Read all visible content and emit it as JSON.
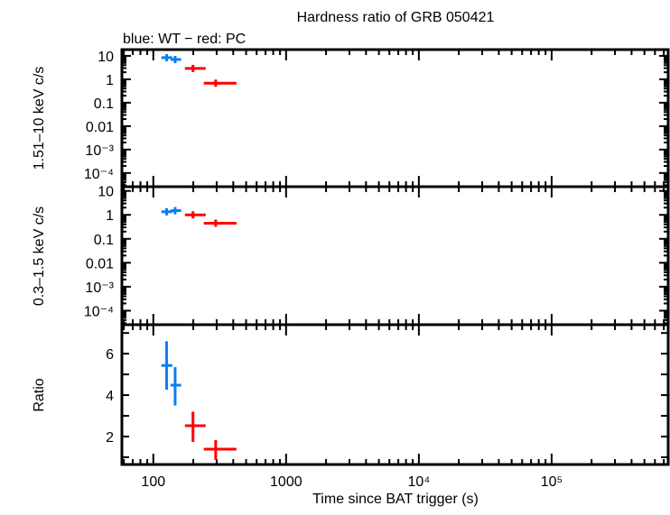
{
  "title": "Hardness ratio of GRB 050421",
  "subtitle": "blue: WT − red: PC",
  "colors": {
    "WT": "#0a7ff0",
    "PC": "#ff0000",
    "axis": "#000000"
  },
  "chart_data": [
    {
      "type": "scatter",
      "panel": "top",
      "ylabel": "1.51–10 keV c/s",
      "xscale": "log",
      "yscale": "log",
      "xlim": [
        58,
        755000
      ],
      "ylim": [
        2.6e-05,
        18.5
      ],
      "ytick_labels": [
        "10",
        "1",
        "0.1",
        "0.01",
        "10⁻³",
        "10⁻⁴"
      ],
      "ytick_values": [
        10,
        1,
        0.1,
        0.01,
        0.001,
        0.0001
      ],
      "series": [
        {
          "mode": "WT",
          "color": "#0a7ff0",
          "points": [
            {
              "x": 126,
              "xlo": 115,
              "xhi": 139,
              "y": 8.4,
              "ylo": 7.9,
              "yhi": 8.9
            },
            {
              "x": 146,
              "xlo": 135,
              "xhi": 162,
              "y": 7.0,
              "ylo": 6.5,
              "yhi": 7.5
            }
          ]
        },
        {
          "mode": "PC",
          "color": "#ff0000",
          "points": [
            {
              "x": 199,
              "xlo": 173,
              "xhi": 248,
              "y": 2.9,
              "ylo": 2.5,
              "yhi": 3.3
            },
            {
              "x": 295,
              "xlo": 240,
              "xhi": 423,
              "y": 0.68,
              "ylo": 0.58,
              "yhi": 0.8
            }
          ]
        }
      ]
    },
    {
      "type": "scatter",
      "panel": "middle",
      "ylabel": "0.3–1.5 keV c/s",
      "xscale": "log",
      "yscale": "log",
      "xlim": [
        58,
        755000
      ],
      "ylim": [
        2.6e-05,
        15
      ],
      "ytick_labels": [
        "10",
        "1",
        "0.1",
        "0.01",
        "10⁻³",
        "10⁻⁴"
      ],
      "ytick_values": [
        10,
        1,
        0.1,
        0.01,
        0.001,
        0.0001
      ],
      "series": [
        {
          "mode": "WT",
          "color": "#0a7ff0",
          "points": [
            {
              "x": 126,
              "xlo": 115,
              "xhi": 139,
              "y": 1.35,
              "ylo": 1.2,
              "yhi": 1.5
            },
            {
              "x": 146,
              "xlo": 135,
              "xhi": 162,
              "y": 1.5,
              "ylo": 1.35,
              "yhi": 1.7
            }
          ]
        },
        {
          "mode": "PC",
          "color": "#ff0000",
          "points": [
            {
              "x": 199,
              "xlo": 173,
              "xhi": 248,
              "y": 1.0,
              "ylo": 0.85,
              "yhi": 1.2
            },
            {
              "x": 295,
              "xlo": 240,
              "xhi": 423,
              "y": 0.45,
              "ylo": 0.38,
              "yhi": 0.53
            }
          ]
        }
      ]
    },
    {
      "type": "scatter",
      "panel": "bottom",
      "ylabel": "Ratio",
      "xlabel": "Time since BAT trigger (s)",
      "xscale": "log",
      "yscale": "linear",
      "xlim": [
        58,
        755000
      ],
      "ylim": [
        0.65,
        7.4
      ],
      "ytick_values": [
        2,
        4,
        6
      ],
      "ytick_labels": [
        "2",
        "4",
        "6"
      ],
      "xtick_values": [
        100,
        1000,
        10000,
        100000
      ],
      "xtick_labels": [
        "100",
        "1000",
        "10⁴",
        "10⁵"
      ],
      "series": [
        {
          "mode": "WT",
          "color": "#0a7ff0",
          "points": [
            {
              "x": 126,
              "xlo": 115,
              "xhi": 139,
              "y": 5.43,
              "ylo": 4.26,
              "yhi": 6.6
            },
            {
              "x": 146,
              "xlo": 135,
              "xhi": 162,
              "y": 4.48,
              "ylo": 3.5,
              "yhi": 5.35
            }
          ]
        },
        {
          "mode": "PC",
          "color": "#ff0000",
          "points": [
            {
              "x": 199,
              "xlo": 173,
              "xhi": 248,
              "y": 2.52,
              "ylo": 1.74,
              "yhi": 3.2
            },
            {
              "x": 295,
              "xlo": 240,
              "xhi": 423,
              "y": 1.39,
              "ylo": 0.87,
              "yhi": 1.83
            }
          ]
        }
      ]
    }
  ]
}
